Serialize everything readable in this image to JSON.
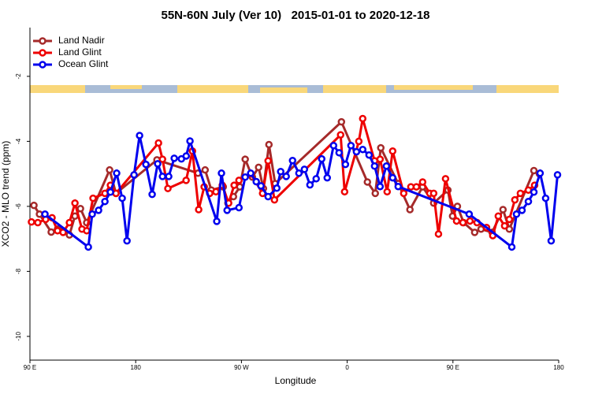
{
  "chart_data": {
    "type": "line",
    "title": "55N-60N July (Ver 10)   2015-01-01 to 2020-12-18",
    "x_label": "Longitude",
    "y_label": "XCO2 - MLO trend (ppm)",
    "xlim": [
      90,
      540
    ],
    "ylim": [
      -10.73,
      -0.5
    ],
    "xticks": [
      {
        "value": 90,
        "label": "90 E"
      },
      {
        "value": 180,
        "label": "180"
      },
      {
        "value": 270,
        "label": "90 W"
      },
      {
        "value": 360,
        "label": "0"
      },
      {
        "value": 450,
        "label": "90 E"
      },
      {
        "value": 540,
        "label": "180"
      }
    ],
    "yticks": [
      -2,
      -4,
      -6,
      -8,
      -10
    ],
    "legend": "top-left",
    "series": [
      {
        "name": "Land Nadir",
        "color": "#a52a2a",
        "x": [
          93.4,
          98.1,
          108.1,
          113.5,
          118.2,
          123.6,
          128.3,
          133,
          138.3,
          157.8,
          163.2,
          198.1,
          233,
          239.1,
          244.4,
          254.5,
          258.5,
          263.2,
          268.6,
          273.2,
          279.3,
          284.6,
          288.7,
          293.4,
          298.7,
          355.1,
          377.2,
          383.9,
          388.6,
          403.4,
          413.4,
          424.2,
          433.6,
          445.7,
          449.7,
          453.8,
          459.1,
          468.5,
          473.9,
          483.3,
          492.6,
          498,
          518.9,
          523.6
        ],
        "values": [
          -5.97,
          -6.24,
          -6.79,
          -6.7,
          -6.75,
          -6.88,
          -6.3,
          -6.07,
          -6.5,
          -4.88,
          -5.6,
          -4.57,
          -4.98,
          -4.88,
          -5.5,
          -5.4,
          -5.9,
          -5.7,
          -5.4,
          -4.55,
          -5.1,
          -4.8,
          -5.45,
          -4.1,
          -5.3,
          -3.4,
          -5.25,
          -5.6,
          -4.2,
          -5.3,
          -6.1,
          -5.4,
          -5.9,
          -5.5,
          -6.3,
          -6.0,
          -6.5,
          -6.8,
          -6.7,
          -6.8,
          -6.1,
          -6.7,
          -4.9,
          -5.0
        ]
      },
      {
        "name": "Land Glint",
        "color": "#ee0000",
        "x": [
          91.3,
          96.7,
          103.4,
          108.8,
          113.5,
          118.2,
          123.6,
          128.3,
          134.3,
          138.3,
          143.7,
          153.8,
          158.5,
          163.2,
          199.4,
          202.8,
          207.4,
          222.9,
          228.3,
          233.6,
          238.3,
          243,
          248.3,
          253.7,
          259.1,
          263.8,
          267.9,
          277.9,
          288,
          292.7,
          298.1,
          354.4,
          357.8,
          369.9,
          373.2,
          383.3,
          388,
          394,
          398.7,
          408.1,
          414.2,
          418.9,
          424.2,
          430.3,
          433.6,
          437.7,
          443.7,
          453.1,
          458.5,
          464.5,
          470.5,
          478.6,
          483.9,
          488.6,
          494,
          498,
          502.7,
          507.4,
          514.2,
          519.5
        ],
        "values": [
          -6.48,
          -6.5,
          -6.4,
          -6.35,
          -6.75,
          -6.8,
          -6.5,
          -5.9,
          -6.7,
          -6.75,
          -5.75,
          -5.6,
          -5.35,
          -5.6,
          -4.05,
          -4.55,
          -5.45,
          -5.2,
          -4.3,
          -6.1,
          -5.4,
          -5.6,
          -5.55,
          -5.35,
          -5.9,
          -5.35,
          -5.2,
          -5.0,
          -5.6,
          -4.6,
          -5.8,
          -3.8,
          -5.55,
          -4.0,
          -3.3,
          -4.6,
          -4.55,
          -5.55,
          -4.3,
          -5.6,
          -5.4,
          -5.4,
          -5.25,
          -5.6,
          -5.6,
          -6.85,
          -5.15,
          -6.45,
          -6.5,
          -6.45,
          -6.5,
          -6.65,
          -6.9,
          -6.3,
          -6.6,
          -6.4,
          -5.8,
          -5.6,
          -5.5,
          -5.35
        ]
      },
      {
        "name": "Ocean Glint",
        "color": "#0000ee",
        "x": [
          102.8,
          139.7,
          143,
          148.4,
          153.8,
          158.5,
          163.8,
          168.5,
          172.6,
          178.6,
          183.3,
          188.7,
          194,
          198.7,
          202.8,
          208.1,
          212.8,
          218.9,
          223,
          226.2,
          249,
          253,
          257.8,
          267.9,
          273.2,
          277.9,
          282.6,
          286.6,
          292.7,
          300.1,
          303.4,
          308.1,
          313.5,
          318.9,
          323.6,
          328.3,
          333.6,
          338.3,
          343,
          348.4,
          353.1,
          358.5,
          363.2,
          367.9,
          373.2,
          378.6,
          383.3,
          388,
          393.4,
          398.7,
          403.4,
          463.8,
          500.1,
          504.1,
          508.8,
          514.2,
          518.9,
          524.2,
          528.9,
          533.6,
          539
        ],
        "values": [
          -6.24,
          -7.25,
          -6.24,
          -6.12,
          -5.85,
          -5.56,
          -4.98,
          -5.75,
          -7.06,
          -5.03,
          -3.82,
          -4.71,
          -5.63,
          -4.69,
          -5.08,
          -5.08,
          -4.52,
          -4.54,
          -4.45,
          -3.99,
          -6.46,
          -4.98,
          -6.12,
          -6.04,
          -5.1,
          -4.98,
          -5.24,
          -5.37,
          -5.7,
          -5.44,
          -4.93,
          -5.08,
          -4.59,
          -4.98,
          -4.86,
          -5.34,
          -5.15,
          -4.54,
          -5.12,
          -4.13,
          -4.35,
          -4.71,
          -4.13,
          -4.32,
          -4.25,
          -4.42,
          -4.76,
          -5.39,
          -4.76,
          -5.12,
          -5.39,
          -6.24,
          -7.25,
          -6.24,
          -6.12,
          -5.85,
          -5.56,
          -4.98,
          -5.75,
          -7.06,
          -5.03
        ]
      }
    ]
  }
}
